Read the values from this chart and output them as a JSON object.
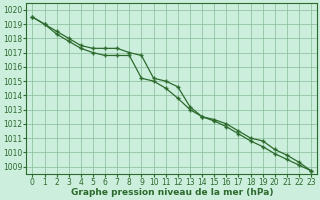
{
  "x": [
    0,
    1,
    2,
    3,
    4,
    5,
    6,
    7,
    8,
    9,
    10,
    11,
    12,
    13,
    14,
    15,
    16,
    17,
    18,
    19,
    20,
    21,
    22,
    23
  ],
  "line1": [
    1019.5,
    1019.0,
    1018.5,
    1018.0,
    1017.5,
    1017.3,
    1017.3,
    1017.3,
    1017.0,
    1016.8,
    1015.2,
    1015.0,
    1014.6,
    1013.2,
    1012.5,
    1012.3,
    1012.0,
    1011.5,
    1011.0,
    1010.8,
    1010.2,
    1009.8,
    1009.3,
    1008.7
  ],
  "line2": [
    1019.5,
    1019.0,
    1018.3,
    1017.8,
    1017.3,
    1017.0,
    1016.8,
    1016.8,
    1016.8,
    1015.2,
    1015.0,
    1014.5,
    1013.8,
    1013.0,
    1012.5,
    1012.2,
    1011.8,
    1011.3,
    1010.8,
    1010.4,
    1009.9,
    1009.5,
    1009.1,
    1008.7
  ],
  "ylim": [
    1008.5,
    1020.5
  ],
  "yticks": [
    1009,
    1010,
    1011,
    1012,
    1013,
    1014,
    1015,
    1016,
    1017,
    1018,
    1019,
    1020
  ],
  "xlim": [
    -0.5,
    23.5
  ],
  "xticks": [
    0,
    1,
    2,
    3,
    4,
    5,
    6,
    7,
    8,
    9,
    10,
    11,
    12,
    13,
    14,
    15,
    16,
    17,
    18,
    19,
    20,
    21,
    22,
    23
  ],
  "xlabel": "Graphe pression niveau de la mer (hPa)",
  "line_color": "#2d6a2d",
  "marker": "+",
  "background_color": "#cceedd",
  "grid_color": "#88bb99",
  "axis_color": "#2d6a2d",
  "tick_color": "#2d6a2d",
  "label_color": "#2d6a2d",
  "tick_fontsize": 5.5,
  "label_fontsize": 6.5
}
